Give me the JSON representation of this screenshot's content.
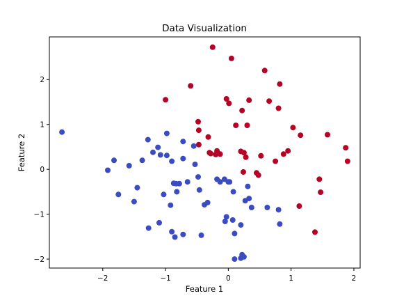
{
  "chart_data": {
    "type": "scatter",
    "title": "Data Visualization",
    "xlabel": "Feature 1",
    "ylabel": "Feature 2",
    "xlim": [
      -2.85,
      2.1
    ],
    "ylim": [
      -2.2,
      2.95
    ],
    "xticks": [
      -2,
      -1,
      0,
      1,
      2
    ],
    "yticks": [
      -2,
      -1,
      0,
      1,
      2
    ],
    "tick_labels_x": [
      "−2",
      "−1",
      "0",
      "1",
      "2"
    ],
    "tick_labels_y": [
      "−2",
      "−1",
      "0",
      "1",
      "2"
    ],
    "grid": false,
    "series": [
      {
        "color": "#b40426",
        "x": [
          -0.25,
          0.05,
          0.58,
          0.82,
          -0.6,
          -1.0,
          -0.03,
          0.01,
          0.33,
          0.65,
          0.8,
          0.22,
          -0.48,
          -0.47,
          0.12,
          0.3,
          1.03,
          1.15,
          1.58,
          -0.32,
          -0.47,
          -0.18,
          -0.3,
          -0.2,
          -0.28,
          -0.13,
          0.2,
          0.25,
          0.28,
          0.52,
          0.88,
          0.95,
          0.75,
          1.87,
          1.9,
          0.24,
          0.45,
          0.48,
          1.45,
          1.47,
          1.13,
          1.38
        ],
        "y": [
          2.72,
          2.47,
          2.2,
          1.9,
          1.86,
          1.55,
          1.57,
          1.47,
          1.54,
          1.52,
          1.36,
          1.31,
          1.06,
          0.87,
          0.98,
          0.98,
          0.93,
          0.76,
          0.77,
          0.72,
          0.55,
          0.41,
          0.37,
          0.33,
          0.35,
          0.34,
          0.4,
          0.37,
          0.27,
          0.3,
          0.34,
          0.41,
          0.18,
          0.48,
          0.18,
          -0.06,
          -0.08,
          -0.13,
          -0.22,
          -0.51,
          -0.82,
          -1.4
        ]
      },
      {
        "color": "#3b4cc0",
        "x": [
          -2.65,
          -1.92,
          -1.82,
          -1.75,
          -1.58,
          -1.5,
          -1.45,
          -1.37,
          -1.28,
          -1.2,
          -1.12,
          -1.08,
          -1.03,
          -0.98,
          -0.98,
          -0.92,
          -0.9,
          -0.87,
          -0.83,
          -0.82,
          -0.78,
          -0.72,
          -0.65,
          -0.72,
          -0.55,
          -0.53,
          -0.48,
          -0.46,
          -0.38,
          -0.33,
          -0.18,
          -0.13,
          -0.06,
          0.0,
          0.02,
          0.08,
          0.1,
          0.2,
          0.27,
          0.33,
          0.31,
          0.25,
          0.62,
          0.8,
          0.82,
          0.37,
          -0.03,
          -0.05,
          0.07,
          0.22,
          0.2,
          0.1,
          -0.72,
          -0.43,
          -1.1,
          -1.27,
          -0.9,
          -0.85
        ],
        "y": [
          0.83,
          -0.02,
          0.2,
          -0.56,
          0.08,
          -0.72,
          -0.41,
          0.2,
          0.66,
          0.38,
          0.49,
          0.32,
          -0.56,
          0.8,
          0.31,
          -0.8,
          0.18,
          -0.31,
          -0.32,
          -0.5,
          -0.32,
          0.24,
          -0.28,
          0.62,
          0.52,
          0.11,
          -0.17,
          -0.46,
          -0.79,
          -0.74,
          -0.22,
          -0.28,
          -0.22,
          -0.28,
          -0.28,
          -0.5,
          -1.43,
          -1.24,
          -0.7,
          -0.65,
          -0.38,
          -1.95,
          -0.85,
          -0.9,
          -1.22,
          -0.85,
          -1.06,
          -1.16,
          -1.13,
          -1.9,
          -1.98,
          -2.0,
          -1.45,
          -1.47,
          -1.19,
          -1.31,
          -1.39,
          -1.51
        ]
      }
    ]
  }
}
